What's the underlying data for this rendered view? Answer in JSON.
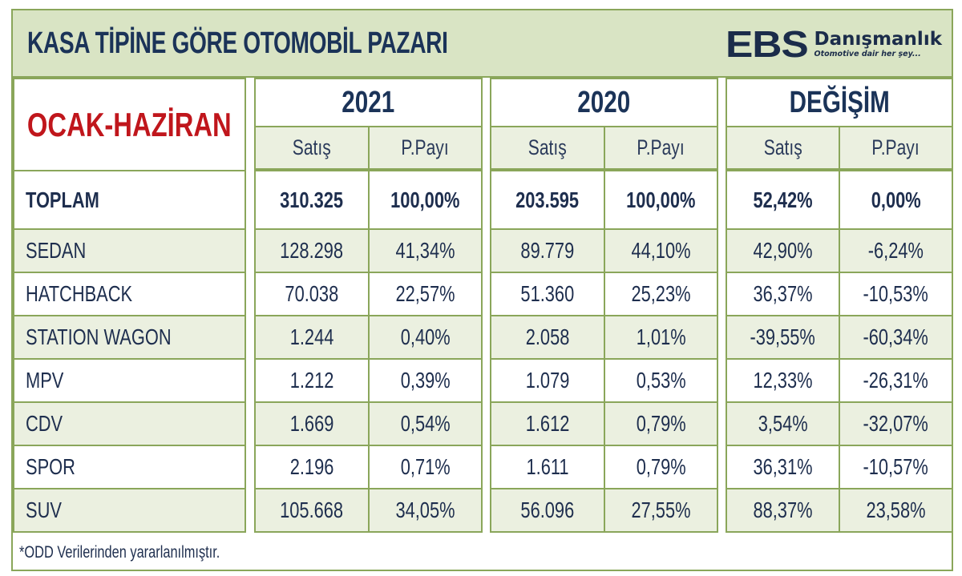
{
  "title": "KASA TİPİNE GÖRE OTOMOBİL PAZARI",
  "logo": {
    "mark": "EBS",
    "name": "Danışmanlık",
    "tagline": "Otomotive dair her şey..."
  },
  "period_label": "OCAK-HAZİRAN",
  "groups": [
    {
      "label": "2021",
      "sub": [
        "Satış",
        "P.Payı"
      ]
    },
    {
      "label": "2020",
      "sub": [
        "Satış",
        "P.Payı"
      ]
    },
    {
      "label": "DEĞİŞİM",
      "sub": [
        "Satış",
        "P.Payı"
      ]
    }
  ],
  "rows": [
    {
      "type": "TOPLAM",
      "bold": true,
      "v2021_sales": "310.325",
      "v2021_share": "100,00%",
      "v2020_sales": "203.595",
      "v2020_share": "100,00%",
      "chg_sales": "52,42%",
      "chg_share": "0,00%"
    },
    {
      "type": "SEDAN",
      "v2021_sales": "128.298",
      "v2021_share": "41,34%",
      "v2020_sales": "89.779",
      "v2020_share": "44,10%",
      "chg_sales": "42,90%",
      "chg_share": "-6,24%"
    },
    {
      "type": "HATCHBACK",
      "v2021_sales": "70.038",
      "v2021_share": "22,57%",
      "v2020_sales": "51.360",
      "v2020_share": "25,23%",
      "chg_sales": "36,37%",
      "chg_share": "-10,53%"
    },
    {
      "type": "STATION WAGON",
      "v2021_sales": "1.244",
      "v2021_share": "0,40%",
      "v2020_sales": "2.058",
      "v2020_share": "1,01%",
      "chg_sales": "-39,55%",
      "chg_share": "-60,34%"
    },
    {
      "type": "MPV",
      "v2021_sales": "1.212",
      "v2021_share": "0,39%",
      "v2020_sales": "1.079",
      "v2020_share": "0,53%",
      "chg_sales": "12,33%",
      "chg_share": "-26,31%"
    },
    {
      "type": "CDV",
      "v2021_sales": "1.669",
      "v2021_share": "0,54%",
      "v2020_sales": "1.612",
      "v2020_share": "0,79%",
      "chg_sales": "3,54%",
      "chg_share": "-32,07%"
    },
    {
      "type": "SPOR",
      "v2021_sales": "2.196",
      "v2021_share": "0,71%",
      "v2020_sales": "1.611",
      "v2020_share": "0,79%",
      "chg_sales": "36,31%",
      "chg_share": "-10,57%"
    },
    {
      "type": "SUV",
      "v2021_sales": "105.668",
      "v2021_share": "34,05%",
      "v2020_sales": "56.096",
      "v2020_share": "27,55%",
      "chg_sales": "88,37%",
      "chg_share": "23,58%"
    }
  ],
  "footer_note": "*ODD Verilerinden yararlanılmıştır.",
  "colors": {
    "title_bg": "#d9e4c4",
    "border": "#8aa65a",
    "row_shade": "#ebf0e0",
    "period_red": "#c0161c",
    "text_navy": "#1b3358"
  }
}
